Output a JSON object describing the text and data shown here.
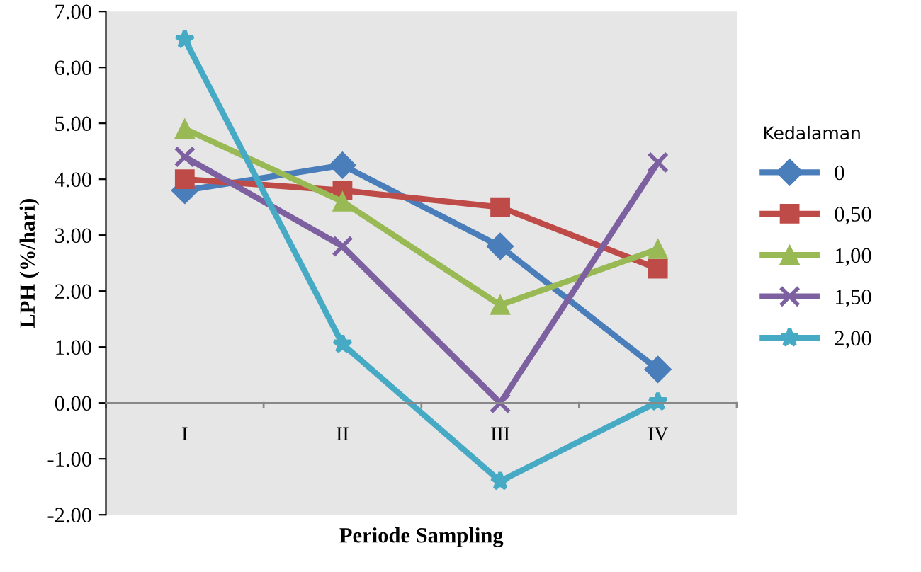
{
  "chart_data": {
    "type": "line",
    "xlabel": "Periode Sampling",
    "ylabel": "LPH (%/hari)",
    "legend_title": "Kedalaman",
    "categories": [
      "I",
      "II",
      "III",
      "IV"
    ],
    "series": [
      {
        "name": "0",
        "color": "#4a7ebb",
        "marker": "diamond",
        "values": [
          3.8,
          4.25,
          2.8,
          0.6
        ]
      },
      {
        "name": "0,50",
        "color": "#be4b48",
        "marker": "square",
        "values": [
          4.0,
          3.8,
          3.5,
          2.4
        ]
      },
      {
        "name": "1,00",
        "color": "#98b954",
        "marker": "triangle",
        "values": [
          4.9,
          3.6,
          1.75,
          2.75
        ]
      },
      {
        "name": "1,50",
        "color": "#7d60a0",
        "marker": "cross",
        "values": [
          4.4,
          2.8,
          0.0,
          4.3
        ]
      },
      {
        "name": "2,00",
        "color": "#46aac5",
        "marker": "star",
        "values": [
          6.5,
          1.05,
          -1.4,
          0.02
        ]
      }
    ],
    "ylim": [
      -2,
      7
    ],
    "yticks": [
      {
        "value": -2,
        "label": "-2.00"
      },
      {
        "value": -1,
        "label": "-1.00"
      },
      {
        "value": 0,
        "label": "0.00"
      },
      {
        "value": 1,
        "label": "1.00"
      },
      {
        "value": 2,
        "label": "2.00"
      },
      {
        "value": 3,
        "label": "3.00"
      },
      {
        "value": 4,
        "label": "4.00"
      },
      {
        "value": 5,
        "label": "5.00"
      },
      {
        "value": 6,
        "label": "6.00"
      },
      {
        "value": 7,
        "label": "7.00"
      }
    ],
    "grid": false,
    "legend": "right"
  }
}
